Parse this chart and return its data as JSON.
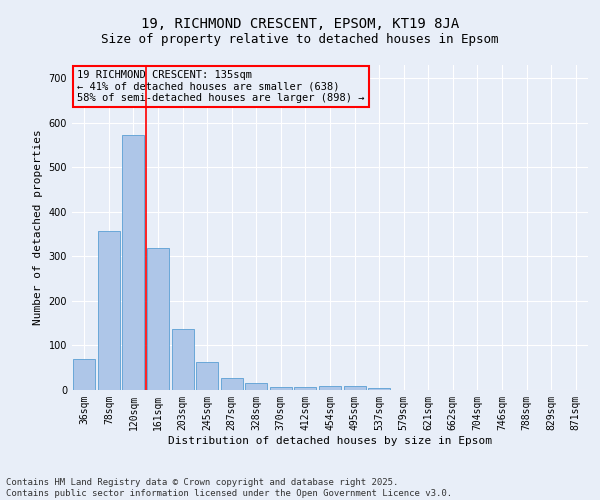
{
  "title1": "19, RICHMOND CRESCENT, EPSOM, KT19 8JA",
  "title2": "Size of property relative to detached houses in Epsom",
  "xlabel": "Distribution of detached houses by size in Epsom",
  "ylabel": "Number of detached properties",
  "categories": [
    "36sqm",
    "78sqm",
    "120sqm",
    "161sqm",
    "203sqm",
    "245sqm",
    "287sqm",
    "328sqm",
    "370sqm",
    "412sqm",
    "454sqm",
    "495sqm",
    "537sqm",
    "579sqm",
    "621sqm",
    "662sqm",
    "704sqm",
    "746sqm",
    "788sqm",
    "829sqm",
    "871sqm"
  ],
  "values": [
    70,
    357,
    572,
    319,
    136,
    62,
    27,
    16,
    7,
    6,
    10,
    10,
    5,
    0,
    0,
    0,
    0,
    0,
    0,
    0,
    0
  ],
  "bar_color": "#aec6e8",
  "bar_edgecolor": "#5a9fd4",
  "vline_x": 2.5,
  "annotation_text": "19 RICHMOND CRESCENT: 135sqm\n← 41% of detached houses are smaller (638)\n58% of semi-detached houses are larger (898) →",
  "annotation_box_edgecolor": "red",
  "vline_color": "red",
  "ylim": [
    0,
    730
  ],
  "yticks": [
    0,
    100,
    200,
    300,
    400,
    500,
    600,
    700
  ],
  "background_color": "#e8eef8",
  "grid_color": "#ffffff",
  "footer_line1": "Contains HM Land Registry data © Crown copyright and database right 2025.",
  "footer_line2": "Contains public sector information licensed under the Open Government Licence v3.0.",
  "title1_fontsize": 10,
  "title2_fontsize": 9,
  "xlabel_fontsize": 8,
  "ylabel_fontsize": 8,
  "tick_fontsize": 7,
  "annotation_fontsize": 7.5,
  "footer_fontsize": 6.5
}
